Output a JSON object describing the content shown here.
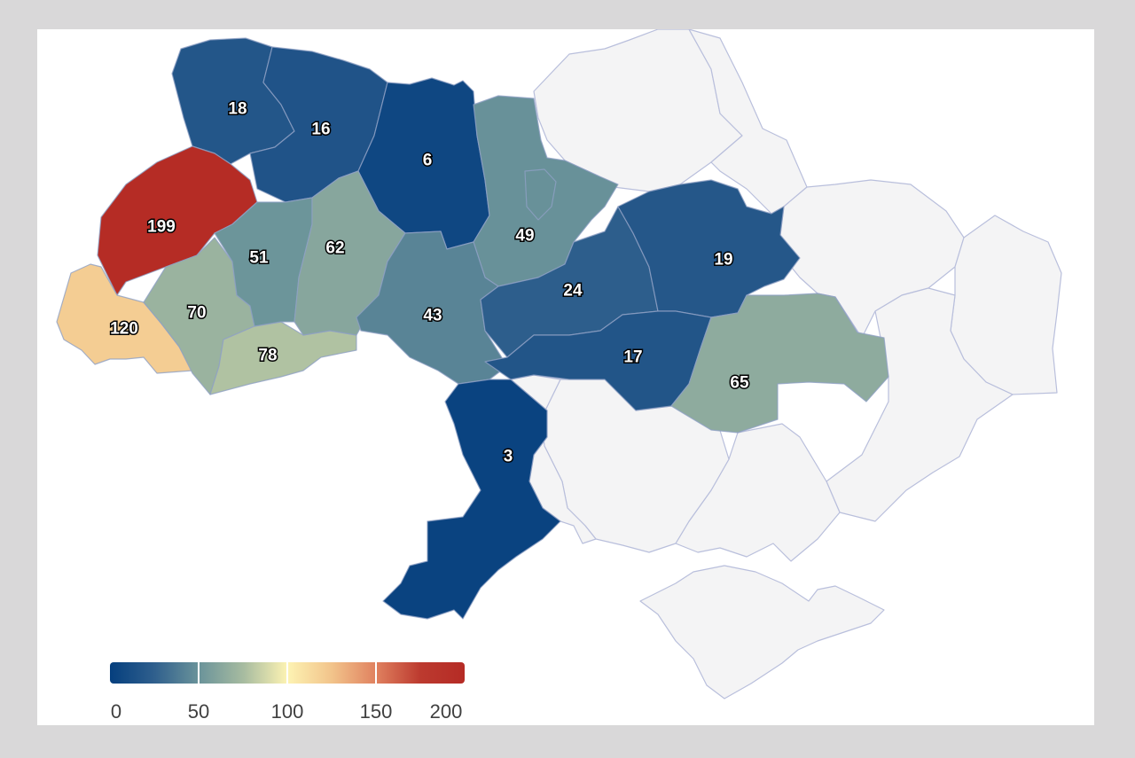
{
  "map": {
    "legend": {
      "min": 0,
      "max": 200,
      "ticks": [
        "0",
        "50",
        "100",
        "150",
        "200"
      ],
      "colors": [
        "#053f7e",
        "#2f5f8d",
        "#6a939a",
        "#a6bba0",
        "#fdf3b3",
        "#f2c48b",
        "#e0815f",
        "#bc3a2f",
        "#b52b25"
      ]
    },
    "regions": [
      {
        "name": "volyn",
        "value": 18,
        "label": "18"
      },
      {
        "name": "rivne",
        "value": 16,
        "label": "16"
      },
      {
        "name": "zhytomyr",
        "value": 6,
        "label": "6"
      },
      {
        "name": "kyiv",
        "value": 49,
        "label": "49"
      },
      {
        "name": "lviv",
        "value": 199,
        "label": "199"
      },
      {
        "name": "zakarpattia",
        "value": 120,
        "label": "120"
      },
      {
        "name": "ivano-frankivsk",
        "value": 70,
        "label": "70"
      },
      {
        "name": "chernivtsi",
        "value": 78,
        "label": "78"
      },
      {
        "name": "ternopil",
        "value": 51,
        "label": "51"
      },
      {
        "name": "khmelnytskyi",
        "value": 62,
        "label": "62"
      },
      {
        "name": "vinnytsia",
        "value": 43,
        "label": "43"
      },
      {
        "name": "cherkasy",
        "value": 24,
        "label": "24"
      },
      {
        "name": "poltava",
        "value": 19,
        "label": "19"
      },
      {
        "name": "kirovohrad",
        "value": 17,
        "label": "17"
      },
      {
        "name": "dnipropetrovsk",
        "value": 65,
        "label": "65"
      },
      {
        "name": "odesa",
        "value": 3,
        "label": "3"
      }
    ]
  }
}
